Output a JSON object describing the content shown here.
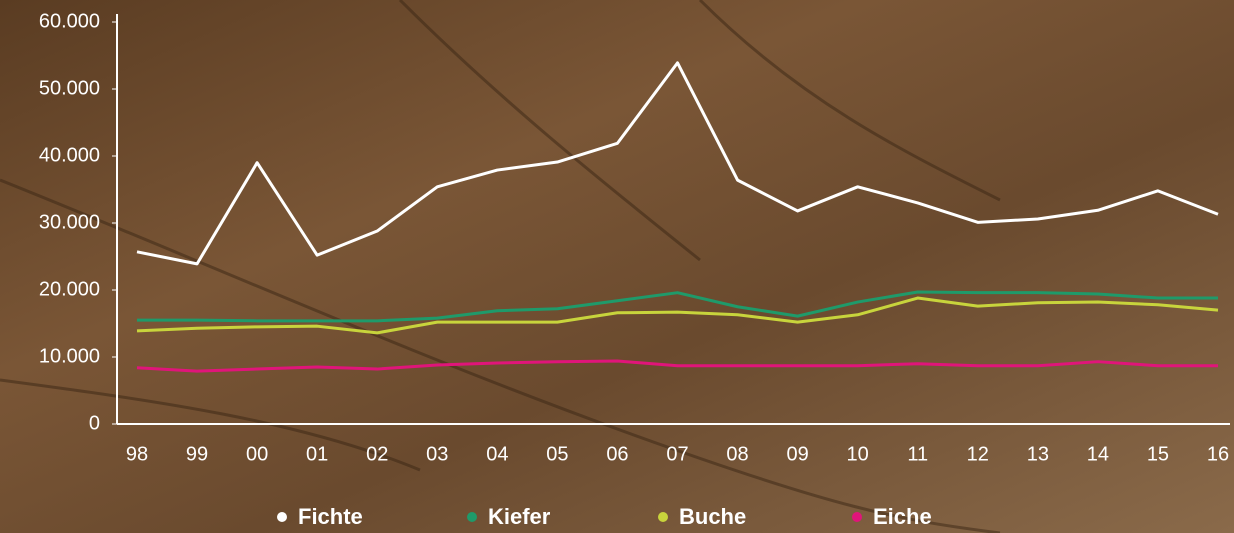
{
  "chart_data": {
    "type": "line",
    "categories": [
      "98",
      "99",
      "00",
      "01",
      "02",
      "03",
      "04",
      "05",
      "06",
      "07",
      "08",
      "09",
      "10",
      "11",
      "12",
      "13",
      "14",
      "15",
      "16"
    ],
    "series": [
      {
        "name": "Fichte",
        "color": "#ffffff",
        "values": [
          25700,
          23900,
          39000,
          25200,
          28800,
          35400,
          37900,
          39100,
          41900,
          53900,
          36400,
          31800,
          35400,
          33000,
          30100,
          30600,
          31900,
          34800,
          31300
        ]
      },
      {
        "name": "Kiefer",
        "color": "#1f9a6a",
        "values": [
          15500,
          15500,
          15400,
          15400,
          15400,
          15800,
          16900,
          17200,
          18400,
          19600,
          17500,
          16100,
          18200,
          19700,
          19600,
          19600,
          19400,
          18800,
          18800
        ]
      },
      {
        "name": "Buche",
        "color": "#c8d43c",
        "values": [
          13900,
          14300,
          14500,
          14600,
          13600,
          15200,
          15200,
          15200,
          16600,
          16700,
          16300,
          15200,
          16300,
          18800,
          17600,
          18100,
          18200,
          17800,
          17000
        ]
      },
      {
        "name": "Eiche",
        "color": "#e0157a",
        "values": [
          8400,
          7900,
          8200,
          8500,
          8200,
          8800,
          9100,
          9300,
          9400,
          8700,
          8700,
          8700,
          8700,
          9000,
          8700,
          8700,
          9300,
          8700,
          8700
        ]
      }
    ],
    "ylim": [
      0,
      60000
    ],
    "yticks": [
      0,
      {
        "value": 10000,
        "label": "10.000"
      },
      {
        "value": 20000,
        "label": "20.000"
      },
      {
        "value": 30000,
        "label": "30.000"
      },
      {
        "value": 40000,
        "label": "40.000"
      },
      {
        "value": 50000,
        "label": "50.000"
      },
      {
        "value": 60000,
        "label": "60.000"
      }
    ]
  }
}
